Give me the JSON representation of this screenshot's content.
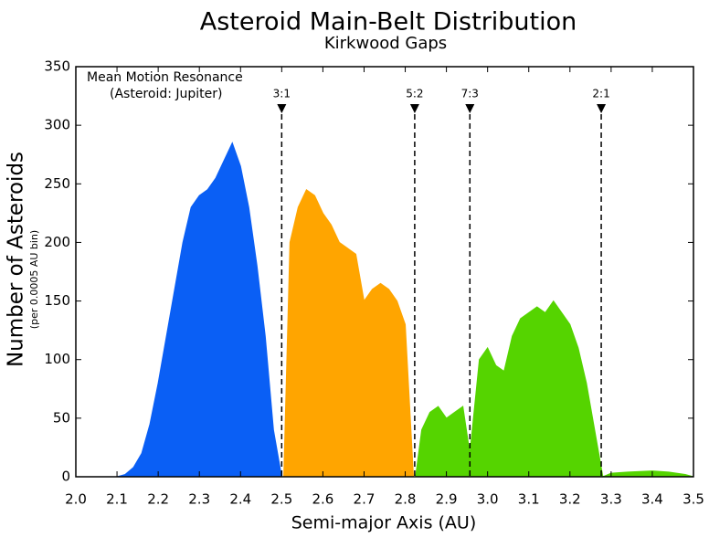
{
  "chart_data": {
    "type": "area",
    "title": "Asteroid Main-Belt Distribution",
    "subtitle": "Kirkwood Gaps",
    "x_label": "Semi-major Axis (AU)",
    "y_label": "Number of Asteroids",
    "y_sublabel": "(per 0.0005 AU bin)",
    "annotation": [
      "Mean Motion Resonance",
      "(Asteroid: Jupiter)"
    ],
    "resonances": [
      {
        "label": "3:1",
        "x": 2.5
      },
      {
        "label": "5:2",
        "x": 2.823
      },
      {
        "label": "7:3",
        "x": 2.957
      },
      {
        "label": "2:1",
        "x": 3.276
      }
    ],
    "xlim": [
      2.0,
      3.5
    ],
    "xticks": [
      {
        "value": 2,
        "label": "2.0"
      },
      2.1,
      2.2,
      2.3,
      2.4,
      2.5,
      2.6,
      2.7,
      2.8,
      2.9,
      {
        "value": 3,
        "label": "3.0"
      },
      3.1,
      3.2,
      3.3,
      3.4,
      3.5
    ],
    "ylim": [
      0,
      350
    ],
    "yticks": [
      0,
      50,
      100,
      150,
      200,
      250,
      300,
      350
    ],
    "series": [
      {
        "color": "#0a5ff5",
        "x": [
          2.1,
          2.12,
          2.14,
          2.16,
          2.18,
          2.2,
          2.22,
          2.24,
          2.26,
          2.28,
          2.3,
          2.32,
          2.34,
          2.36,
          2.38,
          2.4,
          2.42,
          2.44,
          2.46,
          2.48,
          2.5
        ],
        "values": [
          0,
          2,
          8,
          20,
          45,
          80,
          120,
          160,
          200,
          230,
          240,
          245,
          255,
          270,
          285,
          265,
          230,
          180,
          120,
          40,
          0
        ]
      },
      {
        "color": "#ffa500",
        "x": [
          2.505,
          2.52,
          2.54,
          2.56,
          2.58,
          2.6,
          2.62,
          2.64,
          2.66,
          2.68,
          2.7,
          2.72,
          2.74,
          2.76,
          2.78,
          2.8,
          2.82
        ],
        "values": [
          0,
          200,
          230,
          245,
          240,
          225,
          215,
          200,
          195,
          190,
          150,
          160,
          165,
          160,
          150,
          130,
          0
        ]
      },
      {
        "color": "#55d400",
        "x": [
          2.825,
          2.84,
          2.86,
          2.88,
          2.9,
          2.92,
          2.94,
          2.957,
          2.98,
          3.0,
          3.02,
          3.04,
          3.06,
          3.08,
          3.1,
          3.12,
          3.14,
          3.16,
          3.18,
          3.2,
          3.22,
          3.24,
          3.26,
          3.28,
          3.3,
          3.34,
          3.4,
          3.44,
          3.48,
          3.5
        ],
        "values": [
          0,
          40,
          55,
          60,
          50,
          55,
          60,
          20,
          100,
          110,
          95,
          90,
          120,
          135,
          140,
          145,
          140,
          150,
          140,
          130,
          110,
          80,
          40,
          0,
          3,
          4,
          5,
          4,
          2,
          0
        ]
      }
    ]
  }
}
